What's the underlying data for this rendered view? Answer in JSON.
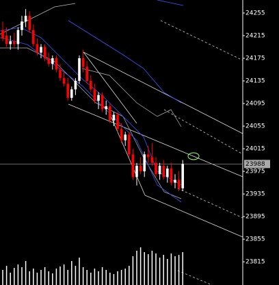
{
  "chart_data": {
    "type": "candlestick",
    "ylim": [
      23774,
      24278
    ],
    "yticks": [
      24255,
      24215,
      24175,
      24135,
      24095,
      24055,
      24015,
      23975,
      23935,
      23895,
      23855,
      23815
    ],
    "last_price": 23988,
    "up_color": "#ffffff",
    "down_color": "#ff0000",
    "candles": [
      [
        24225,
        24240,
        24205,
        24210
      ],
      [
        24215,
        24230,
        24195,
        24200
      ],
      [
        24200,
        24215,
        24190,
        24205
      ],
      [
        24205,
        24220,
        24195,
        24200
      ],
      [
        24200,
        24230,
        24190,
        24225
      ],
      [
        24225,
        24250,
        24215,
        24240
      ],
      [
        24240,
        24262,
        24230,
        24250
      ],
      [
        24250,
        24258,
        24220,
        24225
      ],
      [
        24225,
        24235,
        24195,
        24200
      ],
      [
        24200,
        24210,
        24180,
        24185
      ],
      [
        24185,
        24200,
        24175,
        24195
      ],
      [
        24195,
        24200,
        24170,
        24175
      ],
      [
        24175,
        24185,
        24160,
        24165
      ],
      [
        24165,
        24180,
        24155,
        24175
      ],
      [
        24175,
        24180,
        24150,
        24155
      ],
      [
        24155,
        24165,
        24135,
        24140
      ],
      [
        24140,
        24150,
        24125,
        24130
      ],
      [
        24130,
        24140,
        24100,
        24105
      ],
      [
        24105,
        24125,
        24100,
        24120
      ],
      [
        24120,
        24140,
        24110,
        24135
      ],
      [
        24135,
        24180,
        24130,
        24175
      ],
      [
        24175,
        24190,
        24150,
        24160
      ],
      [
        24160,
        24170,
        24130,
        24135
      ],
      [
        24135,
        24145,
        24115,
        24120
      ],
      [
        24120,
        24130,
        24095,
        24100
      ],
      [
        24100,
        24115,
        24085,
        24110
      ],
      [
        24110,
        24115,
        24080,
        24085
      ],
      [
        24085,
        24100,
        24075,
        24090
      ],
      [
        24090,
        24095,
        24060,
        24065
      ],
      [
        24065,
        24080,
        24055,
        24075
      ],
      [
        24075,
        24080,
        24045,
        24050
      ],
      [
        24050,
        24060,
        24025,
        24030
      ],
      [
        24030,
        24045,
        24020,
        24040
      ],
      [
        24040,
        24045,
        24000,
        24005
      ],
      [
        24005,
        24015,
        23960,
        23965
      ],
      [
        23965,
        23990,
        23950,
        23985
      ],
      [
        23985,
        24000,
        23970,
        23975
      ],
      [
        23975,
        24010,
        23965,
        24005
      ],
      [
        24005,
        24020,
        23990,
        24000
      ],
      [
        24000,
        24025,
        23985,
        23990
      ],
      [
        23990,
        24000,
        23965,
        23970
      ],
      [
        23970,
        23990,
        23960,
        23985
      ],
      [
        23985,
        23995,
        23960,
        23965
      ],
      [
        23965,
        23985,
        23955,
        23980
      ],
      [
        23980,
        23990,
        23950,
        23955
      ],
      [
        23955,
        23970,
        23945,
        23960
      ],
      [
        23960,
        23975,
        23940,
        23945
      ],
      [
        23945,
        23995,
        23940,
        23988
      ]
    ],
    "volume": [
      22,
      28,
      18,
      25,
      30,
      26,
      35,
      20,
      24,
      18,
      22,
      26,
      20,
      17,
      24,
      27,
      30,
      22,
      35,
      28,
      40,
      26,
      22,
      18,
      24,
      20,
      26,
      22,
      18,
      16,
      20,
      22,
      24,
      28,
      42,
      50,
      55,
      48,
      45,
      50,
      46,
      40,
      44,
      38,
      46,
      42,
      44,
      48
    ]
  }
}
